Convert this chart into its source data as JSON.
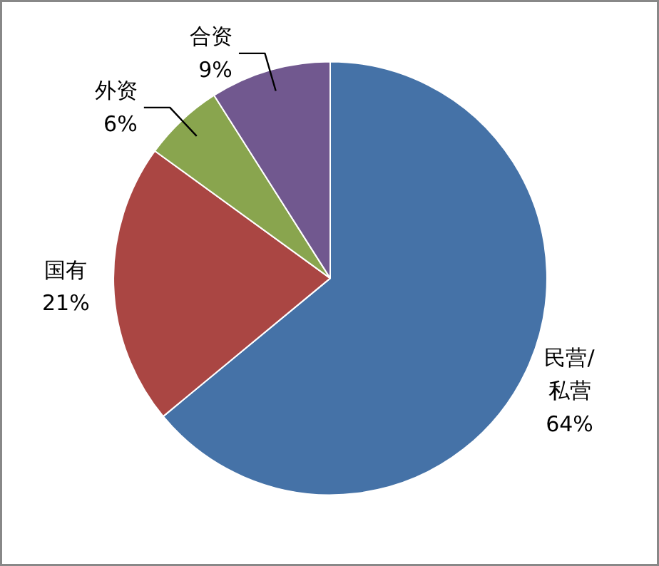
{
  "chart_data": {
    "type": "pie",
    "categories": [
      "民营/私营",
      "国有",
      "外资",
      "合资"
    ],
    "values": [
      64,
      21,
      6,
      9
    ],
    "colors": [
      "#4572a7",
      "#aa4643",
      "#89a54e",
      "#71588f"
    ],
    "value_labels": [
      "64%",
      "21%",
      "6%",
      "9%"
    ]
  }
}
